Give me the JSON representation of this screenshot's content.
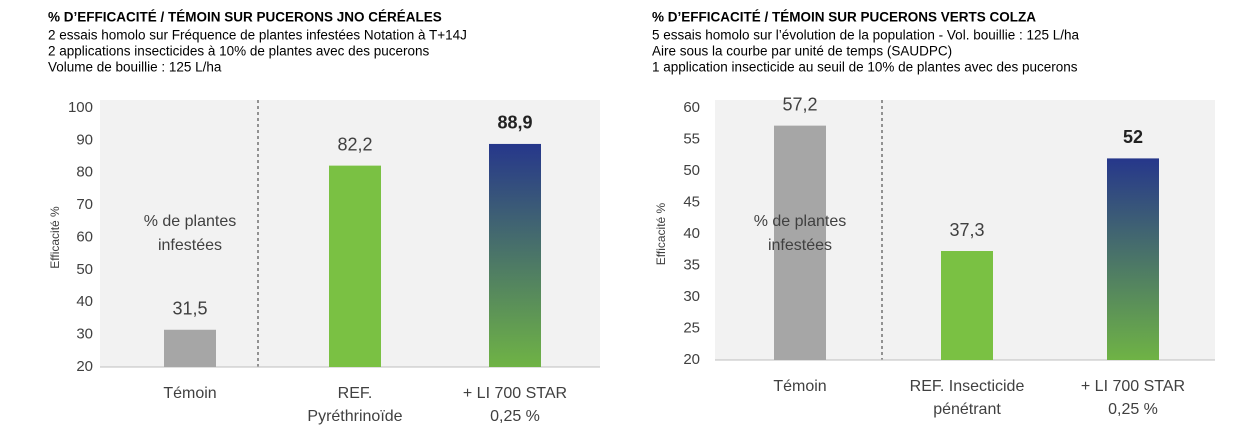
{
  "chart_data": [
    {
      "type": "bar",
      "title": "% D’EFFICACITÉ / TÉMOIN SUR PUCERONS JNO CÉRÉALES",
      "subtitle": [
        "2 essais homolo sur Fréquence de plantes infestées Notation à T+14J",
        "2 applications insecticides à 10% de plantes avec des pucerons",
        "Volume de bouillie : 125 L/ha"
      ],
      "y_label": "Efficacité %",
      "categories": [
        [
          "Témoin"
        ],
        [
          "REF.",
          "Pyréthrinoïde"
        ],
        [
          "+ LI 700 STAR",
          "0,25 %"
        ]
      ],
      "values": [
        31.5,
        82.2,
        88.9
      ],
      "value_labels": [
        "31,5",
        "82,2",
        "88,9"
      ],
      "colors": [
        "#a6a6a6",
        "#7ac143",
        [
          "#26378b",
          "#6fb345"
        ]
      ],
      "annotation": [
        "% de plantes",
        "infestées"
      ],
      "ylim": [
        20,
        100
      ],
      "yticks": [
        20,
        30,
        40,
        50,
        60,
        70,
        80,
        90,
        100
      ]
    },
    {
      "type": "bar",
      "title": "% D’EFFICACITÉ / TÉMOIN SUR PUCERONS VERTS COLZA",
      "subtitle": [
        "5 essais homolo sur l’évolution de la population - Vol. bouillie : 125 L/ha",
        "Aire sous la courbe par unité de temps (SAUDPC)",
        "1 application insecticide au seuil de 10% de plantes avec des pucerons"
      ],
      "y_label": "Efficacité %",
      "categories": [
        [
          "Témoin"
        ],
        [
          "REF. Insecticide",
          "pénétrant"
        ],
        [
          "+ LI 700 STAR",
          "0,25 %"
        ]
      ],
      "values": [
        57.2,
        37.3,
        52
      ],
      "value_labels": [
        "57,2",
        "37,3",
        "52"
      ],
      "colors": [
        "#a6a6a6",
        "#7ac143",
        [
          "#26378b",
          "#6fb345"
        ]
      ],
      "annotation": [
        "% de plantes",
        "infestées"
      ],
      "ylim": [
        20,
        60
      ],
      "yticks": [
        20,
        25,
        30,
        35,
        40,
        45,
        50,
        55,
        60
      ]
    }
  ]
}
